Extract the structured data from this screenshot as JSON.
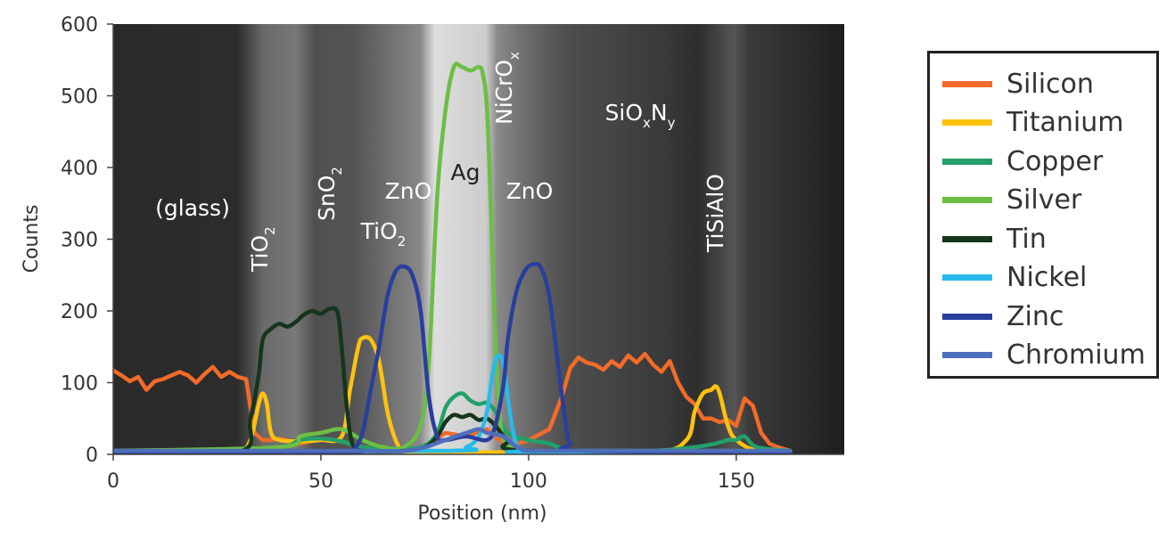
{
  "chart_data": {
    "type": "line",
    "title": "",
    "xlabel": "Position (nm)",
    "ylabel": "Counts",
    "xlim": [
      0,
      176
    ],
    "ylim": [
      0,
      600
    ],
    "x_ticks": [
      "0",
      "50",
      "100",
      "150"
    ],
    "y_ticks": [
      "0",
      "100",
      "200",
      "300",
      "400",
      "500",
      "600"
    ],
    "background": "grayscale TEM cross-section image of the layer stack",
    "legend_position": "right, outside plot",
    "layer_labels": [
      {
        "name": "(glass)",
        "at_x": 19
      },
      {
        "name": "TiO",
        "sub": "2",
        "at_x": 36
      },
      {
        "name": "SnO",
        "sub": "2",
        "at_x": 53
      },
      {
        "name": "TiO",
        "sub": "2",
        "at_x": 65
      },
      {
        "name": "ZnO",
        "at_x": 71
      },
      {
        "name": "Ag",
        "at_x": 85
      },
      {
        "name": "NiCrO",
        "sub": "x",
        "at_x": 95
      },
      {
        "name": "ZnO",
        "at_x": 100
      },
      {
        "name": "SiO",
        "sub": "x",
        "name2": "N",
        "sub2": "y",
        "at_x": 128
      },
      {
        "name": "TiSiAlO",
        "at_x": 146
      }
    ],
    "series": [
      {
        "name": "Silicon",
        "color": "#F26B2A",
        "x": [
          0,
          2,
          4,
          6,
          8,
          10,
          12,
          14,
          16,
          18,
          20,
          22,
          24,
          26,
          28,
          30,
          32,
          34,
          36,
          38,
          40,
          45,
          50,
          55,
          60,
          65,
          70,
          75,
          80,
          85,
          90,
          95,
          100,
          105,
          108,
          110,
          112,
          114,
          116,
          118,
          120,
          122,
          124,
          126,
          128,
          130,
          132,
          134,
          136,
          138,
          140,
          142,
          144,
          146,
          148,
          150,
          152,
          154,
          156,
          158,
          160,
          163
        ],
        "y": [
          117,
          110,
          102,
          108,
          90,
          102,
          105,
          110,
          115,
          110,
          100,
          112,
          122,
          108,
          115,
          108,
          105,
          30,
          20,
          20,
          22,
          15,
          22,
          18,
          10,
          8,
          5,
          10,
          30,
          25,
          35,
          10,
          20,
          35,
          80,
          120,
          135,
          128,
          125,
          118,
          130,
          122,
          138,
          128,
          140,
          125,
          115,
          130,
          100,
          80,
          70,
          50,
          50,
          45,
          48,
          40,
          78,
          68,
          30,
          15,
          10,
          5
        ]
      },
      {
        "name": "Titanium",
        "color": "#FFC20E",
        "x": [
          0,
          20,
          30,
          33,
          35,
          36,
          37,
          38,
          40,
          45,
          50,
          55,
          57,
          59,
          60,
          62,
          64,
          66,
          68,
          70,
          75,
          100,
          130,
          138,
          140,
          142,
          144,
          145,
          146,
          148,
          150,
          155,
          163
        ],
        "y": [
          3,
          3,
          3,
          20,
          70,
          85,
          70,
          30,
          20,
          18,
          20,
          25,
          90,
          150,
          162,
          160,
          130,
          60,
          20,
          5,
          3,
          3,
          3,
          20,
          60,
          85,
          90,
          95,
          85,
          40,
          20,
          5,
          3
        ],
        "smooth": true
      },
      {
        "name": "Copper",
        "color": "#23A06A",
        "x": [
          0,
          20,
          40,
          45,
          50,
          55,
          60,
          70,
          75,
          78,
          80,
          82,
          84,
          86,
          88,
          90,
          92,
          95,
          100,
          105,
          110,
          120,
          130,
          140,
          145,
          148,
          150,
          152,
          155,
          163
        ],
        "y": [
          5,
          5,
          10,
          20,
          22,
          18,
          10,
          8,
          12,
          30,
          65,
          80,
          85,
          75,
          70,
          72,
          60,
          30,
          20,
          15,
          5,
          5,
          5,
          10,
          15,
          20,
          20,
          25,
          10,
          5
        ],
        "smooth": true
      },
      {
        "name": "Silver",
        "color": "#6CBE45",
        "x": [
          0,
          40,
          45,
          50,
          55,
          60,
          65,
          70,
          74,
          76,
          78,
          80,
          82,
          84,
          86,
          88,
          89,
          90,
          91,
          92,
          93,
          94,
          96,
          100,
          110,
          163
        ],
        "y": [
          5,
          10,
          25,
          30,
          35,
          20,
          10,
          10,
          40,
          130,
          360,
          480,
          540,
          540,
          535,
          540,
          530,
          480,
          330,
          160,
          60,
          20,
          10,
          5,
          5,
          5
        ],
        "smooth": true
      },
      {
        "name": "Tin",
        "color": "#15351D",
        "x": [
          0,
          30,
          33,
          35,
          36,
          38,
          40,
          42,
          44,
          46,
          48,
          50,
          52,
          54,
          55,
          56,
          57,
          58,
          60,
          70,
          75,
          78,
          80,
          82,
          84,
          86,
          88,
          90,
          92,
          95,
          100,
          163
        ],
        "y": [
          3,
          3,
          50,
          110,
          160,
          175,
          182,
          178,
          185,
          195,
          200,
          196,
          203,
          198,
          150,
          80,
          30,
          10,
          5,
          5,
          10,
          25,
          45,
          55,
          52,
          55,
          48,
          50,
          40,
          20,
          5,
          3
        ],
        "smooth": true
      },
      {
        "name": "Nickel",
        "color": "#27BBEA",
        "x": [
          0,
          80,
          85,
          88,
          90,
          91,
          92,
          93,
          94,
          95,
          96,
          97,
          98,
          100,
          163
        ],
        "y": [
          3,
          5,
          10,
          25,
          60,
          100,
          130,
          138,
          125,
          80,
          40,
          15,
          5,
          3,
          3
        ],
        "smooth": true
      },
      {
        "name": "Zinc",
        "color": "#2A3E9C",
        "x": [
          0,
          55,
          58,
          60,
          62,
          64,
          66,
          68,
          70,
          72,
          74,
          76,
          78,
          80,
          85,
          90,
          92,
          94,
          95,
          97,
          99,
          101,
          103,
          105,
          107,
          109,
          110,
          112,
          163
        ],
        "y": [
          3,
          3,
          8,
          30,
          90,
          150,
          220,
          255,
          262,
          250,
          200,
          80,
          25,
          20,
          25,
          20,
          40,
          100,
          160,
          225,
          255,
          265,
          260,
          220,
          130,
          40,
          15,
          5,
          3
        ],
        "smooth": true
      },
      {
        "name": "Chromium",
        "color": "#4D6EBB",
        "x": [
          0,
          30,
          50,
          60,
          70,
          75,
          80,
          85,
          88,
          90,
          92,
          94,
          96,
          98,
          100,
          110,
          163
        ],
        "y": [
          5,
          5,
          5,
          5,
          5,
          10,
          20,
          30,
          35,
          30,
          28,
          25,
          15,
          8,
          5,
          5,
          5
        ],
        "smooth": true
      }
    ]
  }
}
